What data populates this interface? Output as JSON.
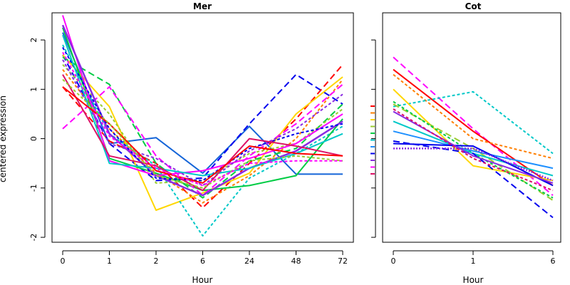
{
  "figure": {
    "ylabel": "centered expression",
    "ylim": [
      -2.1,
      2.55
    ],
    "y_ticks": [
      "-2",
      "-1",
      "0",
      "1",
      "2"
    ],
    "palette": [
      "#ff0000",
      "#ff7f00",
      "#ffd700",
      "#9acd32",
      "#00cc44",
      "#00c8c8",
      "#1e90ff",
      "#0000ee",
      "#8a2be2",
      "#ff00ff",
      "#dd1166"
    ]
  },
  "chart_data": [
    {
      "type": "line",
      "title": "Mer",
      "xlabel": "Hour",
      "categories": [
        "0",
        "1",
        "2",
        "6",
        "24",
        "48",
        "72"
      ],
      "ylim": [
        -2.1,
        2.55
      ],
      "series": [
        {
          "color": "#1565d8",
          "dash": "solid",
          "width": 2,
          "values": [
            2.15,
            -0.1,
            0.02,
            -0.7,
            0.25,
            -0.72,
            -0.72
          ]
        },
        {
          "color": "#0000ee",
          "dash": "long",
          "width": 2,
          "values": [
            1.7,
            -0.1,
            -0.85,
            -0.8,
            0.3,
            1.3,
            0.7
          ]
        },
        {
          "color": "#ff0000",
          "dash": "long",
          "width": 2,
          "values": [
            1.05,
            -0.05,
            -0.5,
            -1.4,
            -0.5,
            0.4,
            1.5
          ]
        },
        {
          "color": "#ff7f00",
          "dash": "short",
          "width": 2,
          "values": [
            1.4,
            0.2,
            -0.7,
            -1.3,
            -0.75,
            0.0,
            1.2
          ]
        },
        {
          "color": "#ffd700",
          "dash": "solid",
          "width": 2,
          "values": [
            1.7,
            0.65,
            -1.45,
            -1.1,
            -0.7,
            0.5,
            1.25
          ]
        },
        {
          "color": "#00c8c8",
          "dash": "short",
          "width": 2,
          "values": [
            1.9,
            0.1,
            -0.55,
            -1.97,
            -0.8,
            -0.3,
            0.25
          ]
        },
        {
          "color": "#00cc44",
          "dash": "solid",
          "width": 2,
          "values": [
            2.25,
            -0.4,
            -0.7,
            -1.05,
            -0.95,
            -0.75,
            0.4
          ]
        },
        {
          "color": "#00cc44",
          "dash": "long",
          "width": 2,
          "values": [
            1.65,
            1.1,
            -0.5,
            -1.2,
            -0.45,
            -0.2,
            0.7
          ]
        },
        {
          "color": "#9acd32",
          "dash": "short",
          "width": 2,
          "values": [
            1.5,
            0.5,
            -0.9,
            -0.85,
            -0.3,
            -0.1,
            0.6
          ]
        },
        {
          "color": "#ff00ff",
          "dash": "long",
          "width": 2,
          "values": [
            0.2,
            1.05,
            -0.35,
            -1.15,
            -0.35,
            0.3,
            1.1
          ]
        },
        {
          "color": "#ff00ff",
          "dash": "solid",
          "width": 2,
          "values": [
            2.5,
            -0.45,
            -0.75,
            -0.65,
            -0.4,
            -0.1,
            0.5
          ]
        },
        {
          "color": "#8a2be2",
          "dash": "solid",
          "width": 2.5,
          "values": [
            2.3,
            0.1,
            -0.75,
            -1.15,
            -0.6,
            -0.25,
            0.35
          ]
        },
        {
          "color": "#8a2be2",
          "dash": "short",
          "width": 2,
          "values": [
            1.6,
            -0.1,
            -0.4,
            -0.95,
            -0.25,
            0.2,
            0.9
          ]
        },
        {
          "color": "#0000ee",
          "dash": "short",
          "width": 2,
          "values": [
            1.85,
            0.2,
            -0.8,
            -0.85,
            -0.2,
            0.1,
            0.3
          ]
        },
        {
          "color": "#00c8c8",
          "dash": "solid",
          "width": 2,
          "values": [
            2.1,
            -0.5,
            -0.6,
            -0.75,
            -0.6,
            -0.3,
            0.1
          ]
        },
        {
          "color": "#dd1166",
          "dash": "solid",
          "width": 2,
          "values": [
            1.3,
            -0.35,
            -0.55,
            -1.05,
            0.0,
            -0.15,
            -0.35
          ]
        },
        {
          "color": "#ff0000",
          "dash": "solid",
          "width": 2,
          "values": [
            1.05,
            0.3,
            -0.65,
            -0.9,
            -0.15,
            -0.3,
            -0.35
          ]
        },
        {
          "color": "#9acd32",
          "dash": "short",
          "width": 2,
          "values": [
            1.2,
            0.3,
            -0.75,
            -1.0,
            -0.45,
            -0.35,
            -0.45
          ]
        },
        {
          "color": "#ff00ff",
          "dash": "short",
          "width": 2,
          "values": [
            1.75,
            0.05,
            -0.6,
            -0.95,
            -0.5,
            -0.45,
            -0.45
          ]
        }
      ]
    },
    {
      "type": "line",
      "title": "Cot",
      "xlabel": "Hour",
      "categories": [
        "0",
        "1",
        "6"
      ],
      "ylim": [
        -2.1,
        2.55
      ],
      "series": [
        {
          "color": "#ff00ff",
          "dash": "long",
          "width": 2,
          "values": [
            1.65,
            0.2,
            -1.15
          ]
        },
        {
          "color": "#ff0000",
          "dash": "solid",
          "width": 2,
          "values": [
            1.4,
            0.15,
            -0.95
          ]
        },
        {
          "color": "#ff7f00",
          "dash": "short",
          "width": 2,
          "values": [
            1.3,
            0.0,
            -0.4
          ]
        },
        {
          "color": "#00c8c8",
          "dash": "short",
          "width": 2,
          "values": [
            0.65,
            0.95,
            -0.3
          ]
        },
        {
          "color": "#ffd700",
          "dash": "solid",
          "width": 2,
          "values": [
            1.0,
            -0.55,
            -0.85
          ]
        },
        {
          "color": "#9acd32",
          "dash": "long",
          "width": 2,
          "values": [
            0.7,
            -0.2,
            -1.25
          ]
        },
        {
          "color": "#00cc44",
          "dash": "short",
          "width": 2,
          "values": [
            0.75,
            -0.3,
            -1.2
          ]
        },
        {
          "color": "#00c8c8",
          "dash": "solid",
          "width": 2,
          "values": [
            0.35,
            -0.3,
            -0.75
          ]
        },
        {
          "color": "#1e90ff",
          "dash": "solid",
          "width": 2,
          "values": [
            0.15,
            -0.25,
            -0.6
          ]
        },
        {
          "color": "#0000ee",
          "dash": "long",
          "width": 2,
          "values": [
            -0.05,
            -0.3,
            -1.6
          ]
        },
        {
          "color": "#0000ee",
          "dash": "solid",
          "width": 2,
          "values": [
            -0.1,
            -0.15,
            -0.95
          ]
        },
        {
          "color": "#8a2be2",
          "dash": "dotted",
          "width": 2.5,
          "values": [
            -0.2,
            -0.2,
            -0.85
          ]
        },
        {
          "color": "#8a2be2",
          "dash": "solid",
          "width": 2,
          "values": [
            0.55,
            -0.35,
            -0.9
          ]
        },
        {
          "color": "#dd1166",
          "dash": "short",
          "width": 2,
          "values": [
            0.6,
            -0.4,
            -1.05
          ]
        }
      ]
    }
  ]
}
